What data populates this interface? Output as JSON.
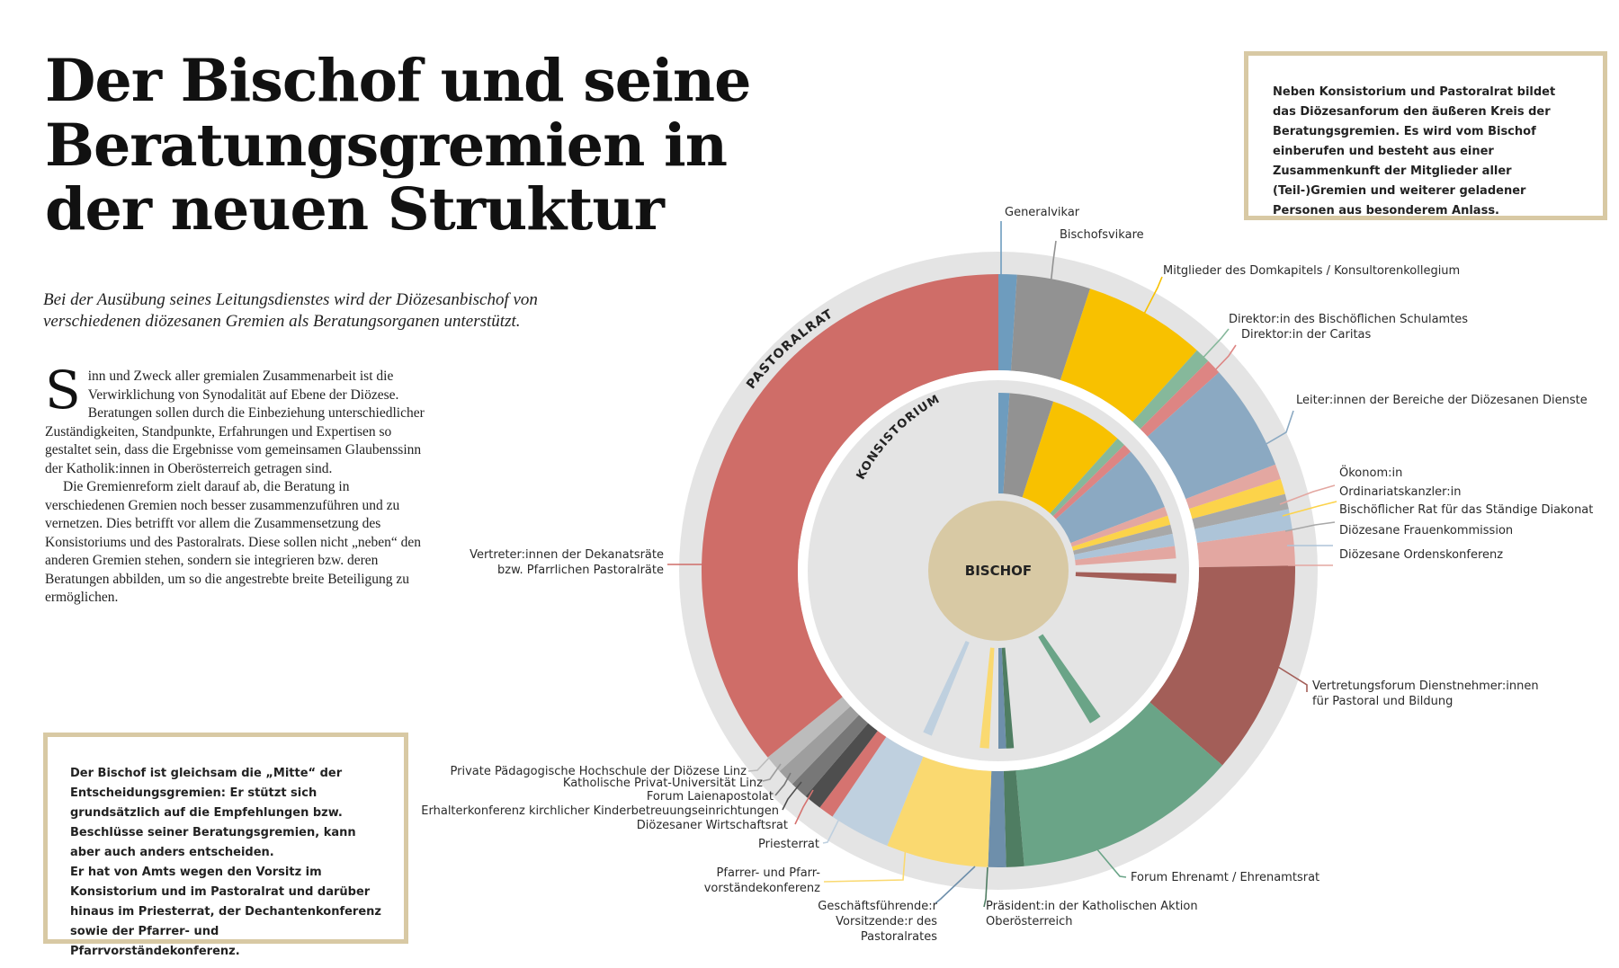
{
  "title": "Der Bischof und seine Beratungsgremien in der neuen Struktur",
  "lead": "Bei der Ausübung seines Leitungsdienstes wird der Diözesanbischof von verschiedenen diözesanen Gremien als Beratungsorganen unterstützt.",
  "body": {
    "dropcap": "S",
    "paragraph1": "inn und Zweck aller gremialen Zusammenarbeit ist die Verwirklichung von Synodalität auf Ebene der Diözese. Beratungen sollen durch die Einbeziehung unterschiedlicher Zuständigkeiten, Standpunkte, Erfahrungen und Expertisen so gestaltet sein, dass die Ergebnisse vom gemeinsamen Glaubenssinn der Katholik:innen in Oberösterreich getragen sind.",
    "paragraph2": "Die Gremienreform zielt darauf ab, die Beratung in verschiedenen Gremien noch besser zusammenzuführen und zu vernetzen. Dies betrifft vor allem die Zusammensetzung des Konsistoriums und des Pastoralrats. Diese sollen nicht „neben“ den anderen Gremien stehen, sondern sie integrieren bzw. deren Beratungen abbilden, um so die angestrebte breite Beteiligung zu ermöglichen."
  },
  "info_right": "Neben Konsistorium und Pastoralrat bildet das Diözesanforum den äußeren Kreis der Beratungsgremien. Es wird vom Bischof einberufen und besteht aus einer Zusammenkunft der Mitglieder aller (Teil-)Gremien und weiterer geladener Personen aus besonderem Anlass.",
  "info_left": {
    "p1": "Der Bischof ist gleichsam die „Mitte“ der Entscheidungsgremien: Er stützt sich grundsätzlich auf die Empfehlungen bzw. Beschlüsse seiner Beratungsgremien, kann aber auch anders entscheiden.",
    "p2": "Er hat von Amts wegen den Vorsitz im Konsistorium und im Pastoralrat und darüber hinaus im Priesterrat, der Dechantenkonferenz sowie der Pfarrer- und Pfarrvorständekonferenz."
  },
  "diagram": {
    "center_label": "BISCHOF",
    "inner_ring_label": "KONSISTORIUM",
    "outer_ring_label": "PASTORALRAT",
    "colors": {
      "forum_ring": "#e4e4e4",
      "inner_disc": "#e4e4e4",
      "center": "#d8c9a4",
      "separator": "#ffffff"
    },
    "outer_segments": [
      {
        "name": "Generalvikar",
        "color": "#6e9cbe",
        "from": 0,
        "to": 3.6
      },
      {
        "name": "Bischofsvikare",
        "color": "#929292",
        "from": 3.6,
        "to": 18
      },
      {
        "name": "Mitglieder des Domkapitels / Konsultorenkollegium",
        "color": "#f8c100",
        "from": 18,
        "to": 42
      },
      {
        "name": "Direktor:in des Bischöflichen Schulamtes",
        "color": "#86b89b",
        "from": 42,
        "to": 45
      },
      {
        "name": "Direktor:in der Caritas",
        "color": "#dd8583",
        "from": 45,
        "to": 48
      },
      {
        "name": "Leiter:innen der Bereiche der Diözesanen Dienste",
        "color": "#8ba9c2",
        "from": 48,
        "to": 69
      },
      {
        "name": "Ökonom:in",
        "color": "#e3a7a1",
        "from": 69,
        "to": 72
      },
      {
        "name": "Ordinariatskanzler:in",
        "color": "#fcd34a",
        "from": 72,
        "to": 75
      },
      {
        "name": "Bischöflicher Rat für das Ständige Diakonat",
        "color": "#a8a8a8",
        "from": 75,
        "to": 78
      },
      {
        "name": "Diözesane Frauenkommission",
        "color": "#adc4d8",
        "from": 78,
        "to": 82
      },
      {
        "name": "Diözesane Ordenskonferenz",
        "color": "#e3a7a1",
        "from": 82,
        "to": 89
      },
      {
        "name": "Vertretungsforum Dienstnehmer:innen für Pastoral und Bildung",
        "color": "#a35e58",
        "from": 89,
        "to": 131
      },
      {
        "name": "Forum Ehrenamt / Ehrenamtsrat",
        "color": "#6aa487",
        "from": 131,
        "to": 175
      },
      {
        "name": "Präsident:in der Katholischen Aktion Oberösterreich",
        "color": "#4f7d62",
        "from": 175,
        "to": 178.5
      },
      {
        "name": "Geschäftsführende:r Vorsitzende:r des Pastoralrates",
        "color": "#6e8fab",
        "from": 178.5,
        "to": 182
      },
      {
        "name": "Pfarrer- und Pfarrvorständekonferenz",
        "color": "#fad970",
        "from": 182,
        "to": 202
      },
      {
        "name": "Priesterrat",
        "color": "#bfd0df",
        "from": 202,
        "to": 214
      },
      {
        "name": "Diözesaner Wirtschaftsrat",
        "color": "#d57370",
        "from": 214,
        "to": 217
      },
      {
        "name": "Erhalterkonferenz kirchlicher Kinderbetreuungseinrichtungen",
        "color": "#4e4e4e",
        "from": 217,
        "to": 220.5
      },
      {
        "name": "Forum Laienapostolat",
        "color": "#777777",
        "from": 220.5,
        "to": 224
      },
      {
        "name": "Katholische Privat-Universität Linz",
        "color": "#9e9e9e",
        "from": 224,
        "to": 227.5
      },
      {
        "name": "Private Pädagogische Hochschule der Diözese Linz",
        "color": "#bcbcbc",
        "from": 227.5,
        "to": 231
      },
      {
        "name": "Vertreter:innen der Dekanatsräte bzw. Pfarrlichen Pastoralräte",
        "color": "#cf6d68",
        "from": 231,
        "to": 360
      }
    ],
    "inner_wedges": [
      {
        "name": "Generalvikar",
        "color": "#6e9cbe",
        "from": 0,
        "to": 3.6
      },
      {
        "name": "Bischofsvikare",
        "color": "#929292",
        "from": 3.6,
        "to": 18
      },
      {
        "name": "Mitglieder des Domkapitels / Konsultorenkollegium",
        "color": "#f8c100",
        "from": 18,
        "to": 42
      },
      {
        "name": "Direktor:in des Bischöflichen Schulamtes",
        "color": "#86b89b",
        "from": 42,
        "to": 45
      },
      {
        "name": "Direktor:in der Caritas",
        "color": "#dd8583",
        "from": 45,
        "to": 48
      },
      {
        "name": "Leiter:innen der Bereiche der Diözesanen Dienste",
        "color": "#8ba9c2",
        "from": 48,
        "to": 69
      },
      {
        "name": "Ökonom:in",
        "color": "#e3a7a1",
        "from": 69,
        "to": 72
      },
      {
        "name": "Ordinariatskanzler:in",
        "color": "#fcd34a",
        "from": 72,
        "to": 75
      },
      {
        "name": "Bischöflicher Rat für das Ständige Diakonat",
        "color": "#a8a8a8",
        "from": 75,
        "to": 78
      },
      {
        "name": "Diözesane Frauenkommission",
        "color": "#adc4d8",
        "from": 78,
        "to": 82
      },
      {
        "name": "Diözesane Ordenskonferenz",
        "color": "#e3a7a1",
        "from": 82,
        "to": 86
      },
      {
        "name": "Vertretungsforum Dienstnehmer:innen für Pastoral und Bildung",
        "color": "#a35e58",
        "from": 91,
        "to": 94
      },
      {
        "name": "Forum Ehrenamt / Ehrenamtsrat",
        "color": "#6aa487",
        "from": 145,
        "to": 149
      },
      {
        "name": "Präsident:in der Katholischen Aktion Oberösterreich",
        "color": "#4f7d62",
        "from": 175,
        "to": 177.5
      },
      {
        "name": "Geschäftsführende:r Vorsitzende:r des Pastoralrates",
        "color": "#6e8fab",
        "from": 177.5,
        "to": 180
      },
      {
        "name": "Pfarrer- und Pfarrvorständekonferenz",
        "color": "#fad970",
        "from": 183,
        "to": 186
      },
      {
        "name": "Priesterrat",
        "color": "#bfd0df",
        "from": 202,
        "to": 205
      }
    ],
    "labels": [
      {
        "text": "Generalvikar",
        "color": "#6e9cbe",
        "lines": [
          "Generalvikar"
        ],
        "anchor": "start"
      },
      {
        "text": "Bischofsvikare",
        "color": "#929292",
        "lines": [
          "Bischofsvikare"
        ],
        "anchor": "start"
      },
      {
        "text": "Mitglieder des Domkapitels / Konsultorenkollegium",
        "color": "#f8c100",
        "lines": [
          "Mitglieder des Domkapitels / Konsultorenkollegium"
        ],
        "anchor": "start"
      },
      {
        "text": "Direktor:in des Bischöflichen Schulamtes",
        "color": "#86b89b",
        "lines": [
          "Direktor:in des Bischöflichen Schulamtes"
        ],
        "anchor": "start"
      },
      {
        "text": "Direktor:in der Caritas",
        "color": "#dd8583",
        "lines": [
          "Direktor:in der Caritas"
        ],
        "anchor": "start"
      },
      {
        "text": "Leiter:innen der Bereiche der Diözesanen Dienste",
        "color": "#8ba9c2",
        "lines": [
          "Leiter:innen der Bereiche der Diözesanen Dienste"
        ],
        "anchor": "start"
      },
      {
        "text": "Ökonom:in",
        "color": "#e3a7a1",
        "lines": [
          "Ökonom:in"
        ],
        "anchor": "start"
      },
      {
        "text": "Ordinariatskanzler:in",
        "color": "#fcd34a",
        "lines": [
          "Ordinariatskanzler:in"
        ],
        "anchor": "start"
      },
      {
        "text": "Bischöflicher Rat für das Ständige Diakonat",
        "color": "#a8a8a8",
        "lines": [
          "Bischöflicher Rat für das Ständige Diakonat"
        ],
        "anchor": "start"
      },
      {
        "text": "Diözesane Frauenkommission",
        "color": "#adc4d8",
        "lines": [
          "Diözesane Frauenkommission"
        ],
        "anchor": "start"
      },
      {
        "text": "Diözesane Ordenskonferenz",
        "color": "#e3a7a1",
        "lines": [
          "Diözesane Ordenskonferenz"
        ],
        "anchor": "start"
      },
      {
        "text": "Vertretungsforum Dienstnehmer:innen für Pastoral und Bildung",
        "color": "#a35e58",
        "lines": [
          "Vertretungsforum Dienstnehmer:innen",
          "für Pastoral und Bildung"
        ],
        "anchor": "start"
      },
      {
        "text": "Forum Ehrenamt / Ehrenamtsrat",
        "color": "#6aa487",
        "lines": [
          "Forum Ehrenamt / Ehrenamtsrat"
        ],
        "anchor": "start"
      },
      {
        "text": "Präsident:in der Katholischen Aktion Oberösterreich",
        "color": "#4f7d62",
        "lines": [
          "Präsident:in der Katholischen Aktion",
          "Oberösterreich"
        ],
        "anchor": "start"
      },
      {
        "text": "Geschäftsführende:r Vorsitzende:r des Pastoralrates",
        "color": "#6e8fab",
        "lines": [
          "Geschäftsführende:r",
          "Vorsitzende:r des",
          "Pastoralrates"
        ],
        "anchor": "end"
      },
      {
        "text": "Pfarrer- und Pfarrvorständekonferenz",
        "color": "#fad970",
        "lines": [
          "Pfarrer- und Pfarr-",
          "vorständekonferenz"
        ],
        "anchor": "end"
      },
      {
        "text": "Priesterrat",
        "color": "#bfd0df",
        "lines": [
          "Priesterrat"
        ],
        "anchor": "end"
      },
      {
        "text": "Diözesaner Wirtschaftsrat",
        "color": "#d57370",
        "lines": [
          "Diözesaner Wirtschaftsrat"
        ],
        "anchor": "end"
      },
      {
        "text": "Erhalterkonferenz kirchlicher Kinderbetreuungseinrichtungen",
        "color": "#4e4e4e",
        "lines": [
          "Erhalterkonferenz kirchlicher Kinderbetreuungseinrichtungen"
        ],
        "anchor": "end"
      },
      {
        "text": "Forum Laienapostolat",
        "color": "#777777",
        "lines": [
          "Forum Laienapostolat"
        ],
        "anchor": "end"
      },
      {
        "text": "Katholische Privat-Universität Linz",
        "color": "#9e9e9e",
        "lines": [
          "Katholische Privat-Universität Linz"
        ],
        "anchor": "end"
      },
      {
        "text": "Private Pädagogische Hochschule der Diözese Linz",
        "color": "#bcbcbc",
        "lines": [
          "Private Pädagogische Hochschule der Diözese Linz"
        ],
        "anchor": "end"
      },
      {
        "text": "Vertreter:innen der Dekanatsräte bzw. Pfarrlichen Pastoralräte",
        "color": "#cf6d68",
        "lines": [
          "Vertreter:innen der Dekanatsräte",
          "bzw. Pfarrlichen Pastoralräte"
        ],
        "anchor": "end"
      }
    ]
  }
}
